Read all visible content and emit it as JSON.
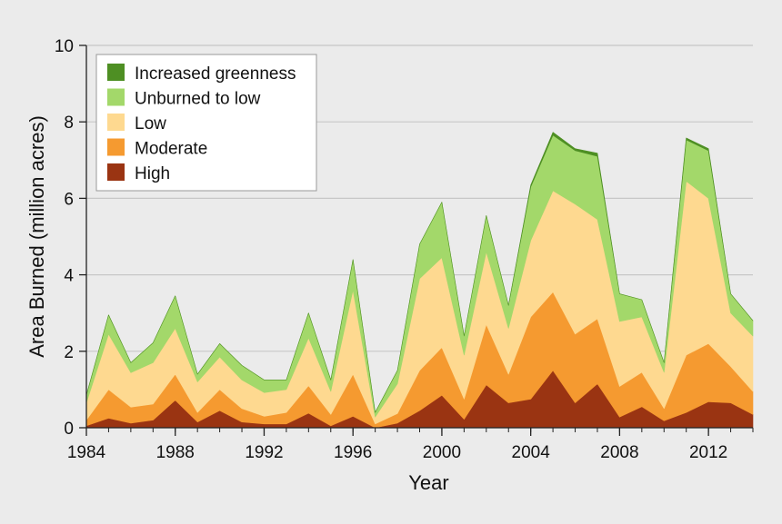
{
  "chart_data": {
    "type": "area",
    "stacked": true,
    "xlabel": "Year",
    "ylabel": "Area Burned (million acres)",
    "xlim": [
      1984,
      2014
    ],
    "ylim": [
      0,
      10
    ],
    "xticks": [
      1984,
      1988,
      1992,
      1996,
      2000,
      2004,
      2008,
      2012
    ],
    "yticks": [
      0,
      2,
      4,
      6,
      8,
      10
    ],
    "grid": true,
    "legend_position": "top-left",
    "x": [
      1984,
      1985,
      1986,
      1987,
      1988,
      1989,
      1990,
      1991,
      1992,
      1993,
      1994,
      1995,
      1996,
      1997,
      1998,
      1999,
      2000,
      2001,
      2002,
      2003,
      2004,
      2005,
      2006,
      2007,
      2008,
      2009,
      2010,
      2011,
      2012,
      2013,
      2014
    ],
    "series": [
      {
        "name": "High",
        "color": "#9a3412",
        "values": [
          0.05,
          0.25,
          0.12,
          0.2,
          0.72,
          0.15,
          0.45,
          0.15,
          0.1,
          0.1,
          0.38,
          0.05,
          0.3,
          0.0,
          0.12,
          0.45,
          0.85,
          0.22,
          1.12,
          0.65,
          0.75,
          1.5,
          0.65,
          1.15,
          0.28,
          0.55,
          0.18,
          0.4,
          0.68,
          0.65,
          0.35
        ]
      },
      {
        "name": "Moderate",
        "color": "#f59a30",
        "values": [
          0.15,
          0.75,
          0.42,
          0.42,
          0.68,
          0.25,
          0.55,
          0.35,
          0.2,
          0.3,
          0.72,
          0.3,
          1.1,
          0.1,
          0.25,
          1.05,
          1.25,
          0.53,
          1.58,
          0.75,
          2.15,
          2.05,
          1.8,
          1.7,
          0.8,
          0.9,
          0.32,
          1.5,
          1.52,
          0.95,
          0.6
        ]
      },
      {
        "name": "Low",
        "color": "#fed990",
        "values": [
          0.45,
          1.45,
          0.9,
          1.08,
          1.2,
          0.8,
          0.85,
          0.75,
          0.62,
          0.6,
          1.25,
          0.6,
          2.2,
          0.18,
          0.78,
          2.4,
          2.35,
          1.15,
          1.9,
          1.2,
          2.0,
          2.65,
          3.4,
          2.6,
          1.7,
          1.45,
          0.95,
          4.55,
          3.8,
          1.4,
          1.45
        ]
      },
      {
        "name": "Unburned to low",
        "color": "#a3d86a",
        "values": [
          0.2,
          0.5,
          0.26,
          0.52,
          0.85,
          0.2,
          0.35,
          0.38,
          0.33,
          0.25,
          0.65,
          0.3,
          0.8,
          0.12,
          0.35,
          0.9,
          1.45,
          0.5,
          0.95,
          0.6,
          1.4,
          1.45,
          1.4,
          1.65,
          0.72,
          0.45,
          0.25,
          1.08,
          1.25,
          0.5,
          0.4
        ]
      },
      {
        "name": "Increased greenness",
        "color": "#4e8f23",
        "values": [
          0.0,
          0.0,
          0.0,
          0.0,
          0.0,
          0.0,
          0.0,
          0.0,
          0.0,
          0.0,
          0.0,
          0.0,
          0.0,
          0.0,
          0.0,
          0.0,
          0.0,
          0.0,
          0.0,
          0.0,
          0.05,
          0.08,
          0.05,
          0.08,
          0.0,
          0.0,
          0.0,
          0.05,
          0.05,
          0.0,
          0.0
        ]
      }
    ],
    "legend_order": [
      "Increased greenness",
      "Unburned to low",
      "Low",
      "Moderate",
      "High"
    ]
  }
}
